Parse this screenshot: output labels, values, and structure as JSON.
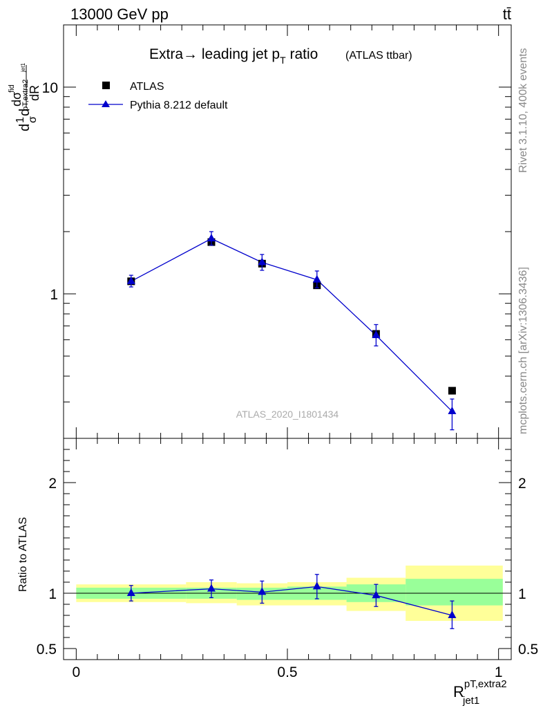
{
  "header": {
    "energy_label": "13000 GeV pp",
    "process_label": "tt̄",
    "side_label_top": "Rivet 3.1.10,  400k events",
    "side_label_bottom": "mcplots.cern.ch [arXiv:1306.3436]",
    "watermark": "ATLAS_2020_I1801434"
  },
  "chart_data": [
    {
      "type": "scatter",
      "title_main": "Extra→ leading jet p",
      "title_sub": "T",
      "title_tail": " ratio",
      "title_small": "(ATLAS ttbar)",
      "ylabel_parts": [
        "d",
        "1",
        "σ",
        "d",
        "dσ",
        "fid",
        "pT,extra2",
        "jet1",
        "dR"
      ],
      "ylog": true,
      "ylim": [
        0.2,
        20
      ],
      "xlim": [
        -0.03,
        1.03
      ],
      "legend_position": "top-left",
      "yticks": [
        {
          "value": 1,
          "label": "1"
        },
        {
          "value": 10,
          "label": "10"
        }
      ],
      "series": [
        {
          "name": "ATLAS",
          "marker": "square",
          "color": "#000000",
          "x": [
            0.13,
            0.32,
            0.44,
            0.57,
            0.71,
            0.89
          ],
          "y": [
            1.15,
            1.78,
            1.4,
            1.1,
            0.64,
            0.34
          ],
          "xerr": [
            0.13,
            0.06,
            0.06,
            0.07,
            0.07,
            0.11
          ]
        },
        {
          "name": "Pythia 8.212 default",
          "marker": "triangle",
          "color": "#0000cc",
          "x": [
            0.13,
            0.32,
            0.44,
            0.57,
            0.71,
            0.89
          ],
          "y": [
            1.15,
            1.85,
            1.42,
            1.17,
            0.63,
            0.27
          ],
          "yerr_up": [
            0.08,
            0.15,
            0.13,
            0.12,
            0.08,
            0.04
          ],
          "yerr_down": [
            0.07,
            0.13,
            0.12,
            0.1,
            0.07,
            0.05
          ]
        }
      ]
    },
    {
      "type": "scatter",
      "ylabel": "Ratio to ATLAS",
      "xlabel_main": "R",
      "xlabel_sup": "pT,extra2",
      "xlabel_sub": "jet1",
      "ylim": [
        0.4,
        2.4
      ],
      "xlim": [
        -0.03,
        1.03
      ],
      "xticks": [
        {
          "value": 0,
          "label": "0"
        },
        {
          "value": 0.5,
          "label": "0.5"
        },
        {
          "value": 1,
          "label": "1"
        }
      ],
      "yticks": [
        {
          "value": 0.5,
          "label": "0.5"
        },
        {
          "value": 1,
          "label": "1"
        },
        {
          "value": 2,
          "label": "2"
        }
      ],
      "bands": [
        {
          "x0": 0.0,
          "x1": 0.26,
          "inner": [
            0.95,
            1.05
          ],
          "outer": [
            0.92,
            1.08
          ]
        },
        {
          "x0": 0.26,
          "x1": 0.38,
          "inner": [
            0.95,
            1.05
          ],
          "outer": [
            0.91,
            1.1
          ]
        },
        {
          "x0": 0.38,
          "x1": 0.5,
          "inner": [
            0.94,
            1.05
          ],
          "outer": [
            0.89,
            1.09
          ]
        },
        {
          "x0": 0.5,
          "x1": 0.64,
          "inner": [
            0.94,
            1.06
          ],
          "outer": [
            0.89,
            1.1
          ]
        },
        {
          "x0": 0.64,
          "x1": 0.78,
          "inner": [
            0.92,
            1.08
          ],
          "outer": [
            0.84,
            1.14
          ]
        },
        {
          "x0": 0.78,
          "x1": 1.01,
          "inner": [
            0.89,
            1.13
          ],
          "outer": [
            0.75,
            1.25
          ]
        }
      ],
      "series": [
        {
          "name": "Pythia 8.212 default",
          "color": "#0000cc",
          "x": [
            0.13,
            0.32,
            0.44,
            0.57,
            0.71,
            0.89
          ],
          "y": [
            1.0,
            1.04,
            1.01,
            1.06,
            0.98,
            0.8
          ],
          "yerr_up": [
            0.07,
            0.08,
            0.1,
            0.11,
            0.1,
            0.13
          ],
          "yerr_down": [
            0.07,
            0.08,
            0.1,
            0.11,
            0.1,
            0.12
          ]
        }
      ]
    }
  ]
}
